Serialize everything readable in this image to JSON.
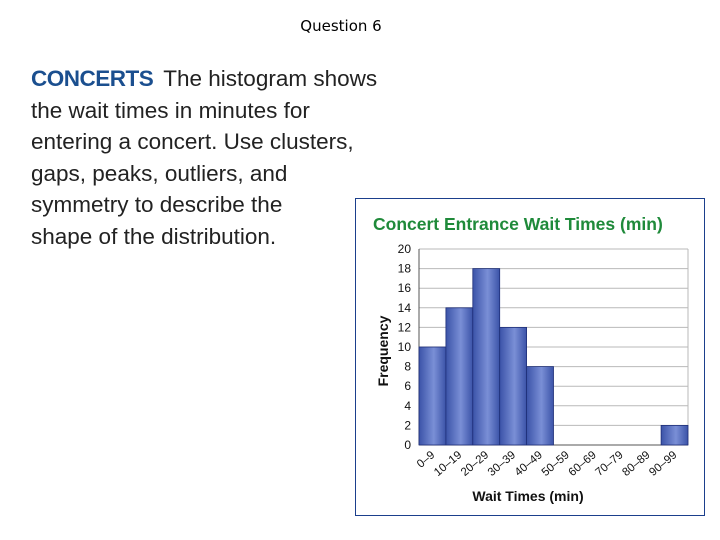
{
  "slide": {
    "title": "Question 6"
  },
  "problem": {
    "keyword": "CONCERTS",
    "lines": [
      "The histogram shows",
      "the wait times in minutes for",
      "entering a concert. Use clusters,",
      "gaps, peaks, outliers, and",
      "symmetry to describe the",
      "shape of the distribution."
    ]
  },
  "chart_data": {
    "type": "bar",
    "title": "Concert Entrance Wait Times (min)",
    "xlabel": "Wait Times (min)",
    "ylabel": "Frequency",
    "categories": [
      "0–9",
      "10–19",
      "20–29",
      "30–39",
      "40–49",
      "50–59",
      "60–69",
      "70–79",
      "80–89",
      "90–99"
    ],
    "values": [
      10,
      14,
      18,
      12,
      8,
      0,
      0,
      0,
      0,
      2
    ],
    "ylim": [
      0,
      20
    ],
    "yticks": [
      0,
      2,
      4,
      6,
      8,
      10,
      12,
      14,
      16,
      18,
      20
    ],
    "grid": true,
    "colors": {
      "bar": "#3b53a8",
      "bar_light": "#7a8fd6",
      "title": "#1f8a3a"
    }
  }
}
